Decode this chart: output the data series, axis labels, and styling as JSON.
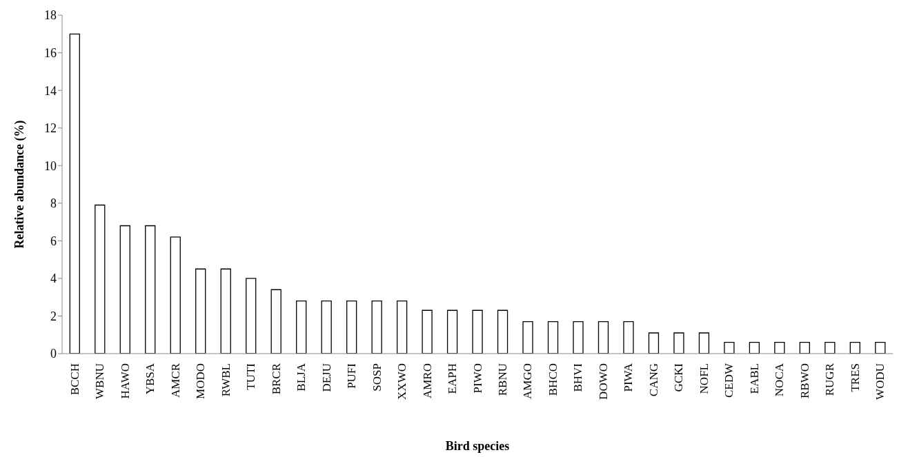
{
  "chart_data": {
    "type": "bar",
    "xlabel": "Bird species",
    "ylabel": "Relative abundance (%)",
    "categories": [
      "BCCH",
      "WBNU",
      "HAWO",
      "YBSA",
      "AMCR",
      "MODO",
      "RWBL",
      "TUTI",
      "BRCR",
      "BLJA",
      "DEJU",
      "PUFI",
      "SOSP",
      "XXWO",
      "AMRO",
      "EAPH",
      "PIWO",
      "RBNU",
      "AMGO",
      "BHCO",
      "BHVI",
      "DOWO",
      "PIWA",
      "CANG",
      "GCKI",
      "NOFL",
      "CEDW",
      "EABL",
      "NOCA",
      "RBWO",
      "RUGR",
      "TRES",
      "WODU"
    ],
    "values": [
      17.0,
      7.9,
      6.8,
      6.8,
      6.2,
      4.5,
      4.5,
      4.0,
      3.4,
      2.8,
      2.8,
      2.8,
      2.8,
      2.8,
      2.3,
      2.3,
      2.3,
      2.3,
      1.7,
      1.7,
      1.7,
      1.7,
      1.7,
      1.1,
      1.1,
      1.1,
      0.6,
      0.6,
      0.6,
      0.6,
      0.6,
      0.6,
      0.6
    ],
    "color": "#ffffff",
    "ylim": [
      0,
      18
    ],
    "yticks": [
      0,
      2,
      4,
      6,
      8,
      10,
      12,
      14,
      16,
      18
    ],
    "grid": false,
    "legend": false
  }
}
